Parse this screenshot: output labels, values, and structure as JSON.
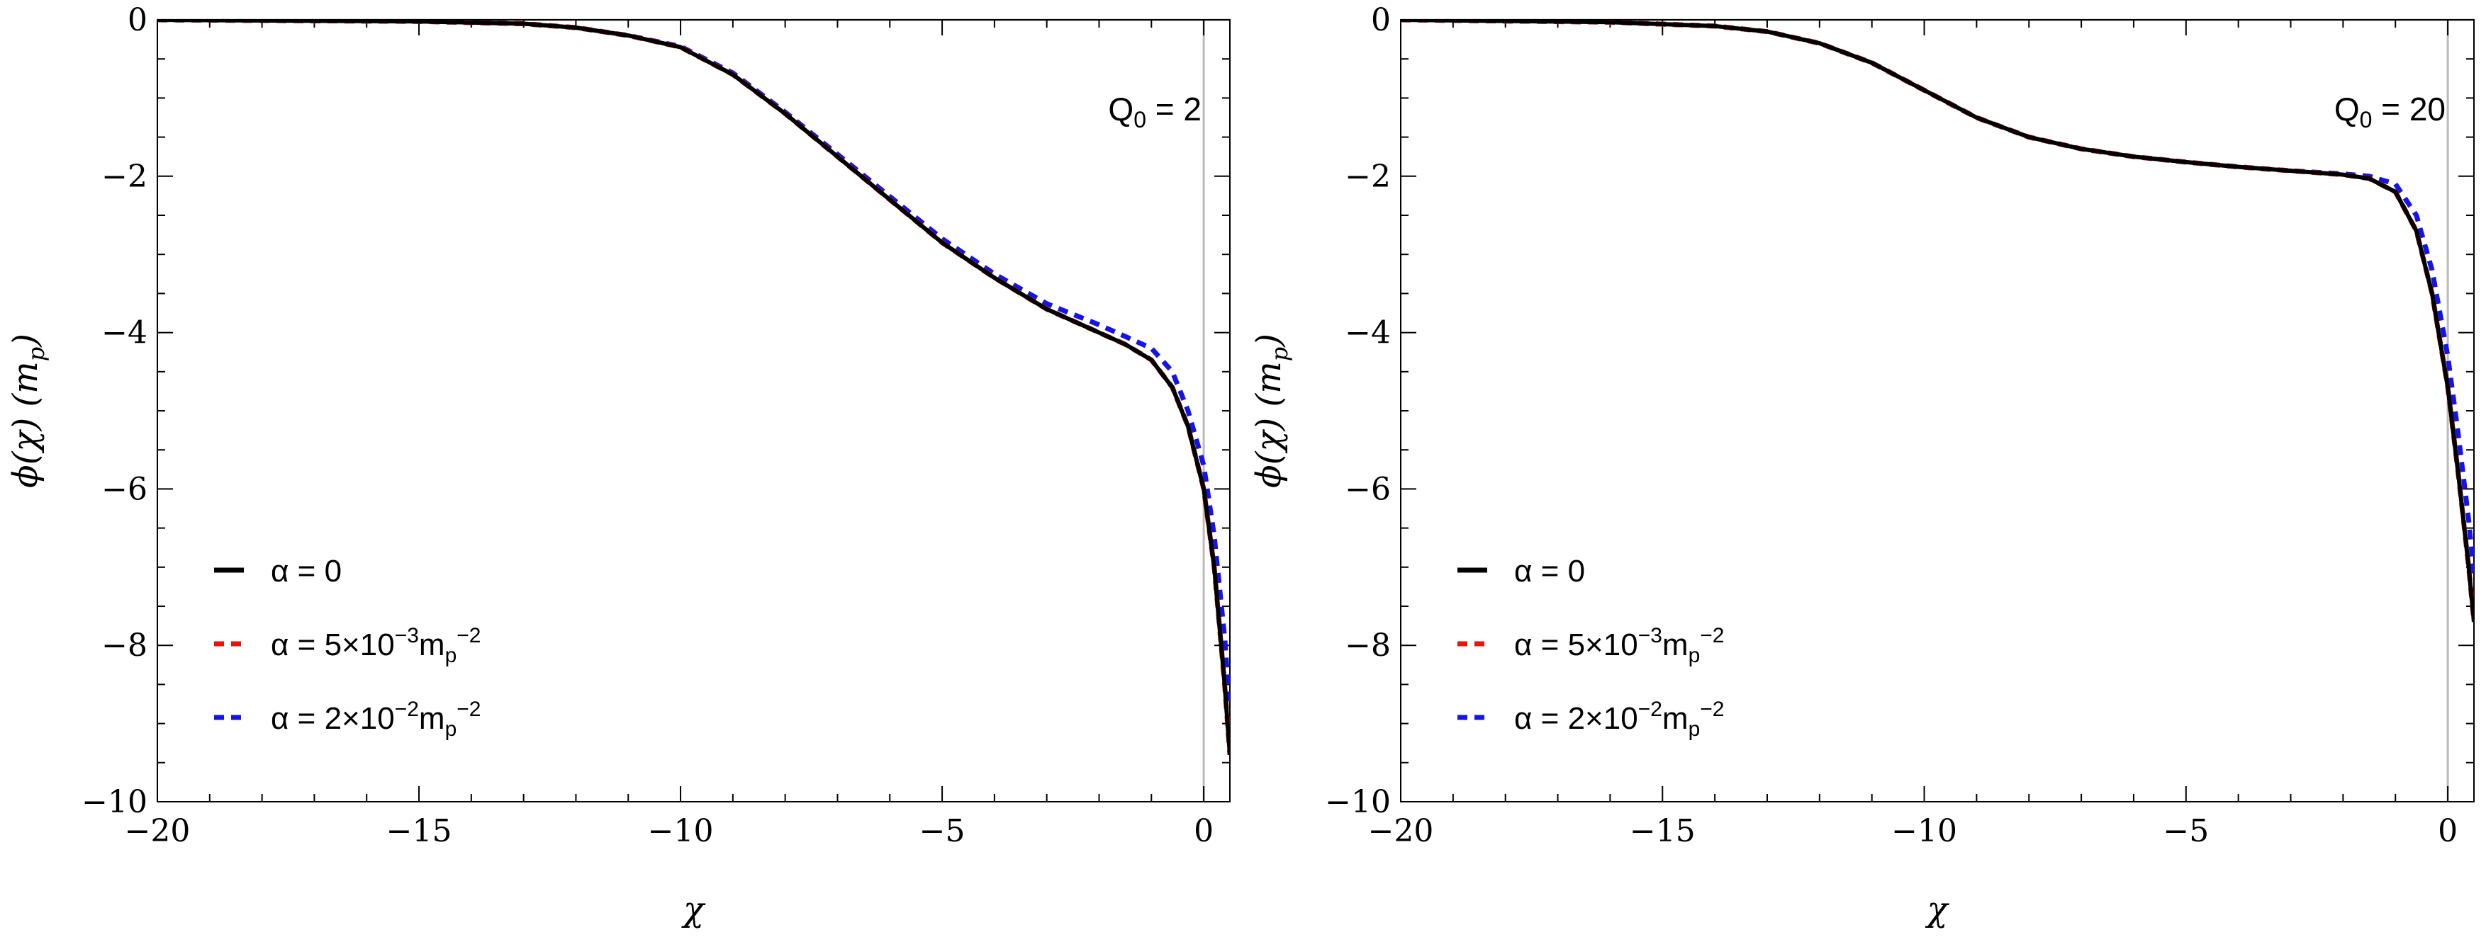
{
  "chart_data": [
    {
      "type": "line",
      "annotation": {
        "main": "Q",
        "sub": "0",
        "rest": " = 2"
      },
      "xlabel": "χ",
      "ylabel": "ϕ(χ) (m",
      "ylabel_sub": "p",
      "ylabel_tail": ")",
      "xlim": [
        -20,
        0.5
      ],
      "ylim": [
        -10,
        0
      ],
      "xticks": [
        -20,
        -15,
        -10,
        -5,
        0
      ],
      "yticks": [
        0,
        -2,
        -4,
        -6,
        -8,
        -10
      ],
      "xtick_labels": [
        "−20",
        "−15",
        "−10",
        "−5",
        "0"
      ],
      "ytick_labels": [
        "0",
        "−2",
        "−4",
        "−6",
        "−8",
        "−10"
      ],
      "legend_position": "lower-left",
      "series": [
        {
          "name": "α = 0",
          "color": "#000000",
          "style": "solid",
          "x": [
            -20,
            -15,
            -13,
            -12,
            -11,
            -10,
            -9,
            -8,
            -7,
            -6,
            -5,
            -4,
            -3,
            -2,
            -1.5,
            -1,
            -0.6,
            -0.3,
            0,
            0.2,
            0.4,
            0.5
          ],
          "y": [
            0,
            -0.02,
            -0.05,
            -0.1,
            -0.2,
            -0.35,
            -0.7,
            -1.2,
            -1.75,
            -2.3,
            -2.85,
            -3.3,
            -3.7,
            -4.0,
            -4.15,
            -4.35,
            -4.7,
            -5.2,
            -6.0,
            -7.0,
            -8.5,
            -9.4
          ]
        },
        {
          "name": "α = 5×10",
          "sup": "−3",
          "unit": "m",
          "unit_sub": "p",
          "unit_sup": "−2",
          "color": "#e8140c",
          "style": "dashed",
          "x": [
            -20,
            -15,
            -13,
            -12,
            -11,
            -10,
            -9,
            -8,
            -7,
            -6,
            -5,
            -4,
            -3,
            -2,
            -1.5,
            -1,
            -0.6,
            -0.3,
            0,
            0.2,
            0.4,
            0.5
          ],
          "y": [
            0,
            -0.02,
            -0.05,
            -0.1,
            -0.2,
            -0.35,
            -0.7,
            -1.2,
            -1.75,
            -2.3,
            -2.85,
            -3.3,
            -3.7,
            -4.0,
            -4.15,
            -4.35,
            -4.7,
            -5.2,
            -6.0,
            -7.0,
            -8.5,
            -9.4
          ]
        },
        {
          "name": "α = 2×10",
          "sup": "−2",
          "unit": "m",
          "unit_sub": "p",
          "unit_sup": "−2",
          "color": "#1414e6",
          "style": "dashed",
          "x": [
            -20,
            -15,
            -13,
            -12,
            -11,
            -10,
            -9,
            -8,
            -7,
            -6,
            -5,
            -4,
            -3,
            -2,
            -1.5,
            -1,
            -0.6,
            -0.3,
            0,
            0.2,
            0.4,
            0.5
          ],
          "y": [
            0,
            -0.02,
            -0.05,
            -0.1,
            -0.2,
            -0.34,
            -0.68,
            -1.18,
            -1.72,
            -2.26,
            -2.8,
            -3.25,
            -3.63,
            -3.9,
            -4.05,
            -4.2,
            -4.5,
            -5.0,
            -5.7,
            -6.6,
            -7.9,
            -8.8
          ]
        }
      ]
    },
    {
      "type": "line",
      "annotation": {
        "main": "Q",
        "sub": "0",
        "rest": " = 20"
      },
      "xlabel": "χ",
      "ylabel": "ϕ(χ) (m",
      "ylabel_sub": "p",
      "ylabel_tail": ")",
      "xlim": [
        -20,
        0.5
      ],
      "ylim": [
        -10,
        0
      ],
      "xticks": [
        -20,
        -15,
        -10,
        -5,
        0
      ],
      "yticks": [
        0,
        -2,
        -4,
        -6,
        -8,
        -10
      ],
      "xtick_labels": [
        "−20",
        "−15",
        "−10",
        "−5",
        "0"
      ],
      "ytick_labels": [
        "0",
        "−2",
        "−4",
        "−6",
        "−8",
        "−10"
      ],
      "legend_position": "lower-left",
      "series": [
        {
          "name": "α = 0",
          "color": "#000000",
          "style": "solid",
          "x": [
            -20,
            -16,
            -14,
            -13,
            -12,
            -11,
            -10,
            -9,
            -8,
            -7,
            -6,
            -5,
            -4,
            -3,
            -2,
            -1.5,
            -1,
            -0.6,
            -0.3,
            0,
            0.2,
            0.4,
            0.5
          ],
          "y": [
            0,
            -0.03,
            -0.08,
            -0.15,
            -0.3,
            -0.55,
            -0.9,
            -1.25,
            -1.5,
            -1.65,
            -1.75,
            -1.82,
            -1.88,
            -1.93,
            -1.98,
            -2.03,
            -2.2,
            -2.7,
            -3.5,
            -4.7,
            -5.8,
            -7.0,
            -7.7
          ]
        },
        {
          "name": "α = 5×10",
          "sup": "−3",
          "unit": "m",
          "unit_sub": "p",
          "unit_sup": "−2",
          "color": "#e8140c",
          "style": "dashed",
          "x": [
            -20,
            -16,
            -14,
            -13,
            -12,
            -11,
            -10,
            -9,
            -8,
            -7,
            -6,
            -5,
            -4,
            -3,
            -2,
            -1.5,
            -1,
            -0.6,
            -0.3,
            0,
            0.2,
            0.4,
            0.5
          ],
          "y": [
            0,
            -0.03,
            -0.08,
            -0.15,
            -0.3,
            -0.55,
            -0.9,
            -1.25,
            -1.5,
            -1.65,
            -1.75,
            -1.82,
            -1.88,
            -1.93,
            -1.98,
            -2.03,
            -2.2,
            -2.7,
            -3.5,
            -4.7,
            -5.8,
            -7.0,
            -7.7
          ]
        },
        {
          "name": "α = 2×10",
          "sup": "−2",
          "unit": "m",
          "unit_sub": "p",
          "unit_sup": "−2",
          "color": "#1414e6",
          "style": "dashed",
          "x": [
            -20,
            -16,
            -14,
            -13,
            -12,
            -11,
            -10,
            -9,
            -8,
            -7,
            -6,
            -5,
            -4,
            -3,
            -2,
            -1.5,
            -1,
            -0.6,
            -0.3,
            0,
            0.2,
            0.4,
            0.5
          ],
          "y": [
            0,
            -0.03,
            -0.08,
            -0.15,
            -0.3,
            -0.55,
            -0.9,
            -1.25,
            -1.5,
            -1.65,
            -1.75,
            -1.82,
            -1.88,
            -1.93,
            -1.97,
            -2.0,
            -2.1,
            -2.5,
            -3.2,
            -4.3,
            -5.3,
            -6.4,
            -7.1
          ]
        }
      ]
    }
  ]
}
